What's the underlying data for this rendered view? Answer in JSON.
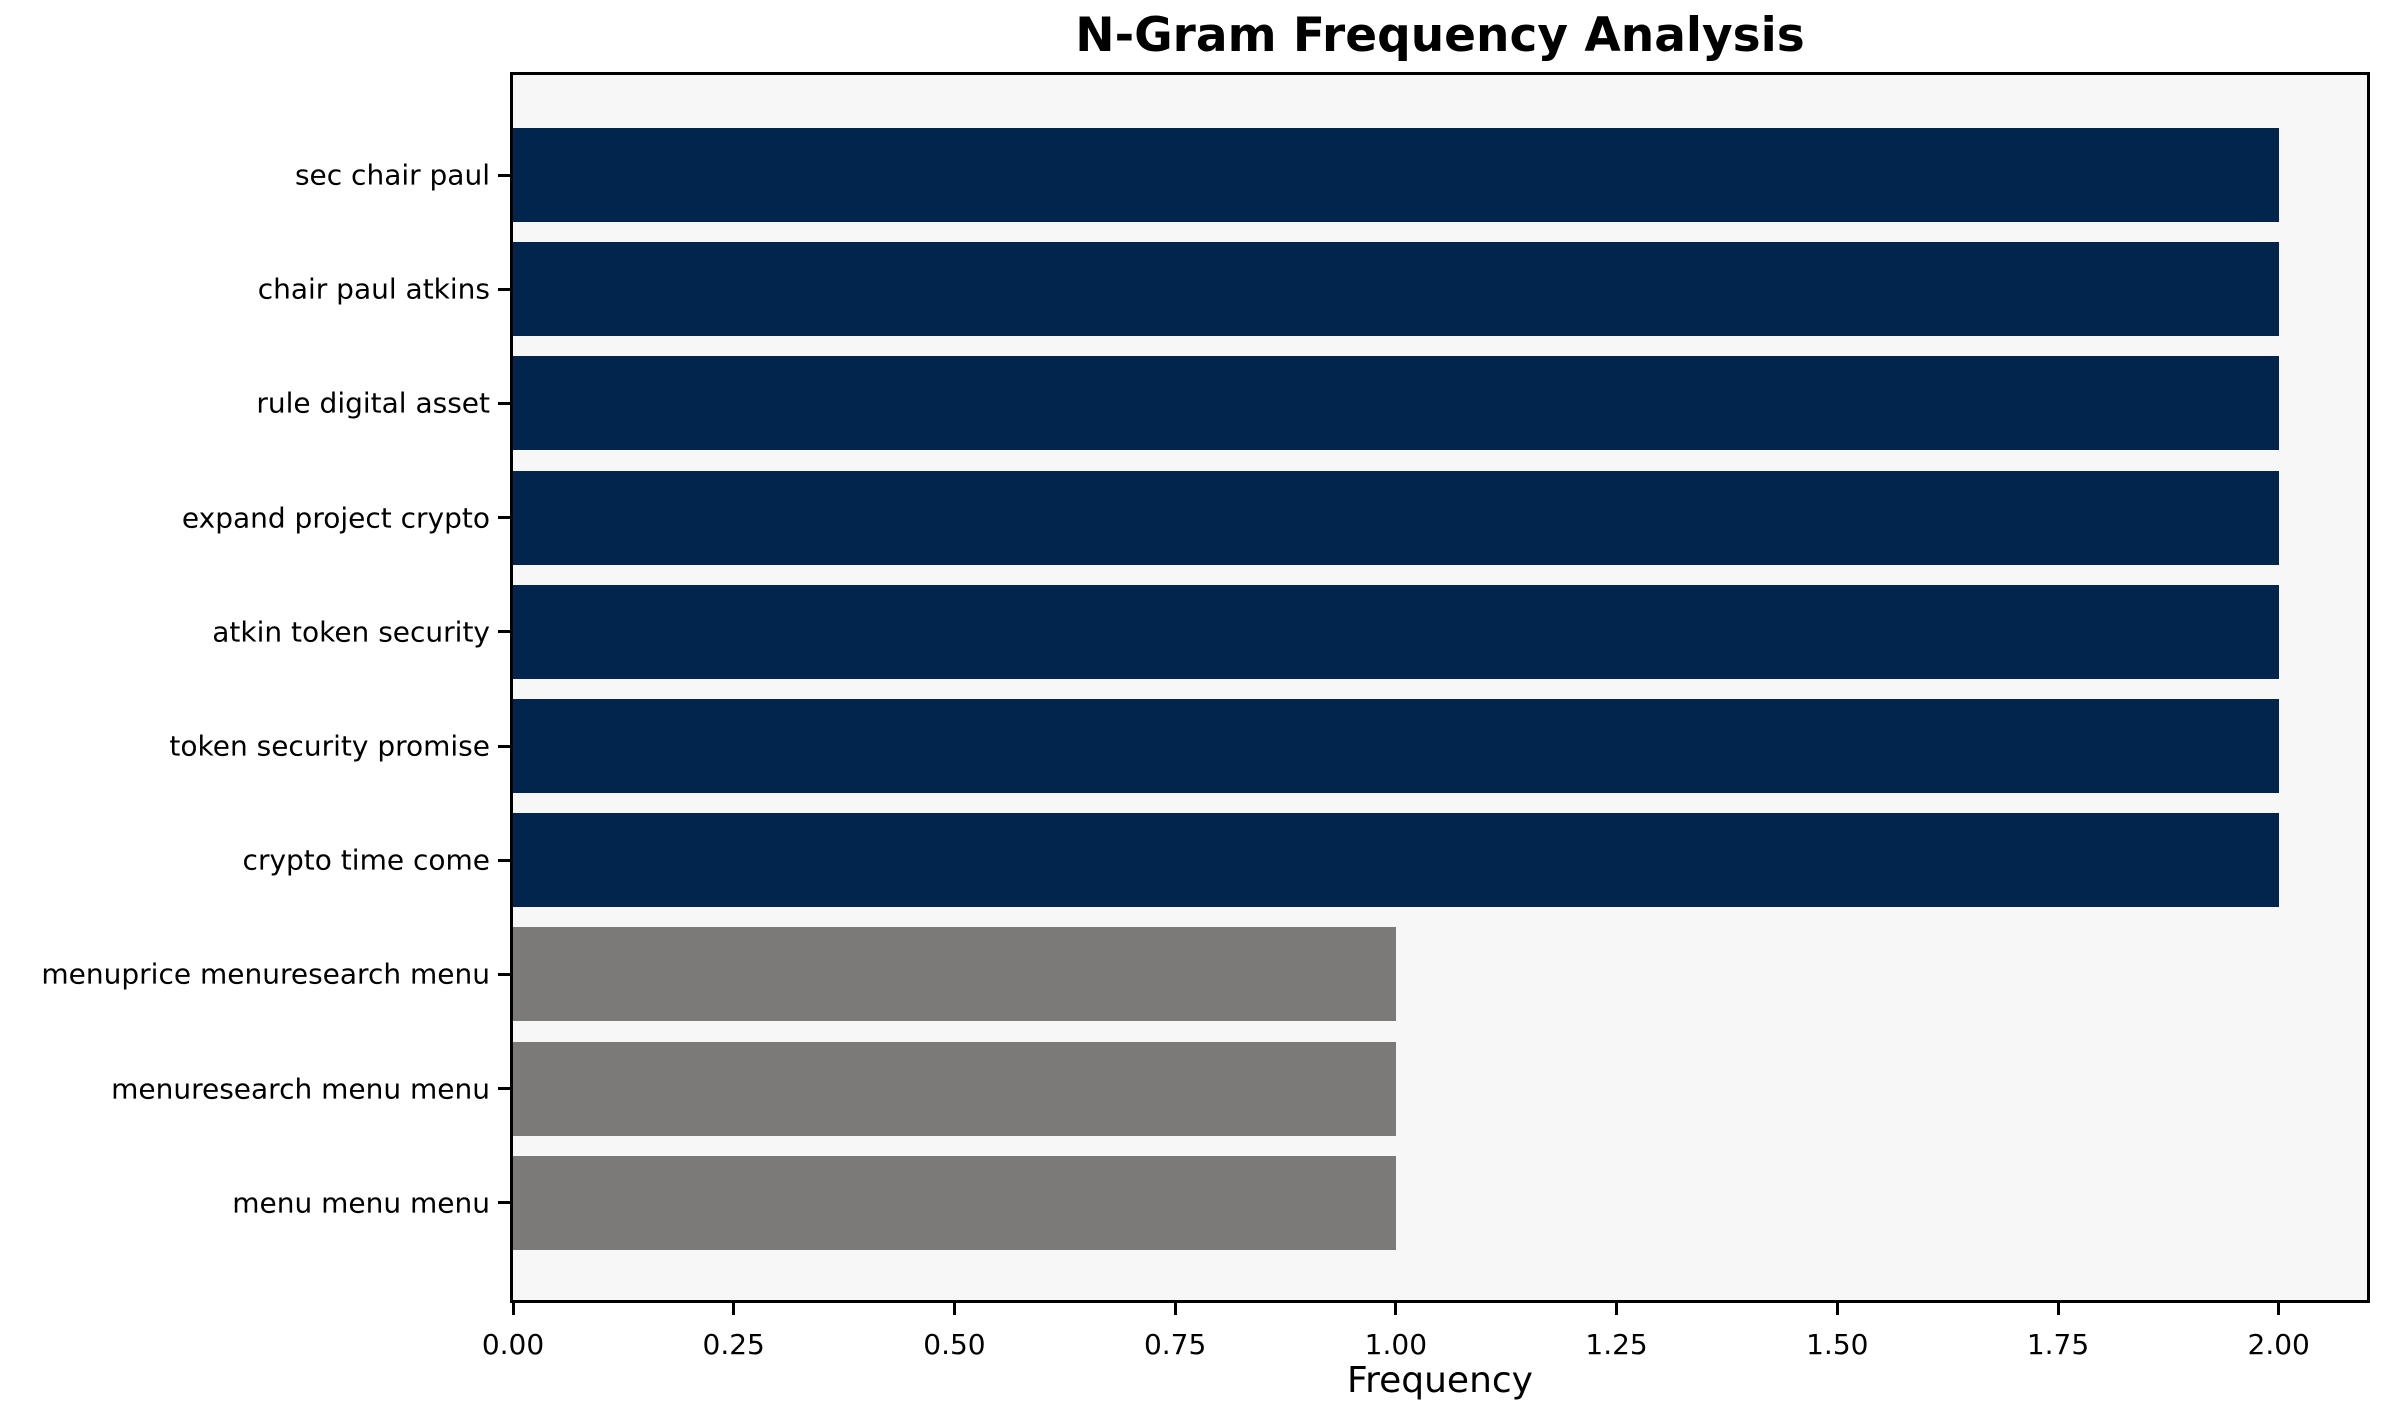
{
  "chart_data": {
    "type": "bar",
    "orientation": "horizontal",
    "title": "N-Gram Frequency Analysis",
    "xlabel": "Frequency",
    "ylabel": "",
    "categories": [
      "sec chair paul",
      "chair paul atkins",
      "rule digital asset",
      "expand project crypto",
      "atkin token security",
      "token security promise",
      "crypto time come",
      "menuprice menuresearch menu",
      "menuresearch menu menu",
      "menu menu menu"
    ],
    "values": [
      2,
      2,
      2,
      2,
      2,
      2,
      2,
      1,
      1,
      1
    ],
    "bar_colors": [
      "#02254E",
      "#02254E",
      "#02254E",
      "#02254E",
      "#02254E",
      "#02254E",
      "#02254E",
      "#7B7A78",
      "#7B7A78",
      "#7B7A78"
    ],
    "x_ticks": [
      0,
      0.25,
      0.5,
      0.75,
      1.0,
      1.25,
      1.5,
      1.75,
      2.0
    ],
    "x_tick_labels": [
      "0.00",
      "0.25",
      "0.50",
      "0.75",
      "1.00",
      "1.25",
      "1.50",
      "1.75",
      "2.00"
    ],
    "xlim": [
      0,
      2.1
    ],
    "grid": false,
    "legend": "none",
    "colors": {
      "highlight": "#02254E",
      "muted": "#7B7A78",
      "plot_bg": "#F7F7F7",
      "figure_bg": "#FFFFFF",
      "spine": "#000000",
      "text": "#000000"
    }
  }
}
